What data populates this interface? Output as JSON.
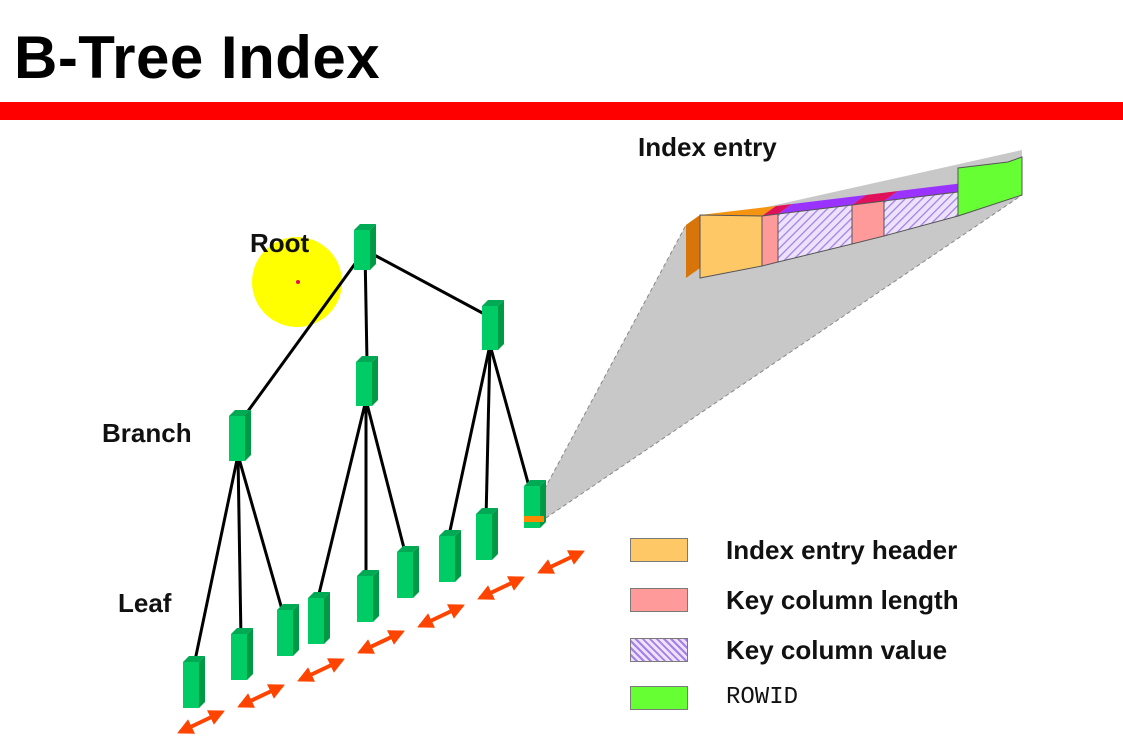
{
  "slide": {
    "title": "B-Tree Index"
  },
  "labels": {
    "root": "Root",
    "branch": "Branch",
    "leaf": "Leaf",
    "index_entry": "Index entry"
  },
  "legend": [
    {
      "key": "header",
      "label": "Index entry header",
      "color": "#ffc866",
      "pattern": "solid",
      "mono": false
    },
    {
      "key": "length",
      "label": "Key column length",
      "color": "#ff9a9a",
      "pattern": "solid",
      "mono": false
    },
    {
      "key": "value",
      "label": "Key column value",
      "color": "#c8a2f0",
      "pattern": "hatched",
      "mono": false
    },
    {
      "key": "rowid",
      "label": "ROWID",
      "color": "#66ff33",
      "pattern": "solid",
      "mono": true
    }
  ],
  "colors": {
    "title_rule": "#ff0000",
    "node_green": "#00cc66",
    "node_green_dark": "#009944",
    "highlight": "#ffff00",
    "arrow": "#ff4400",
    "zoom_cone": "#c8c8c8",
    "entry_header": "#ffc866",
    "entry_header_side": "#d8750a",
    "entry_length": "#ff9a9a",
    "entry_length_top": "#e0105a",
    "entry_value": "#c8a2f0",
    "entry_value_top": "#9a33ff",
    "entry_rowid": "#66ff33",
    "entry_rowid_top": "#22cc55"
  },
  "icons": {
    "tree_node": "green-block-icon",
    "leaf_link": "double-arrow-icon",
    "root_highlight": "yellow-circle-icon"
  }
}
